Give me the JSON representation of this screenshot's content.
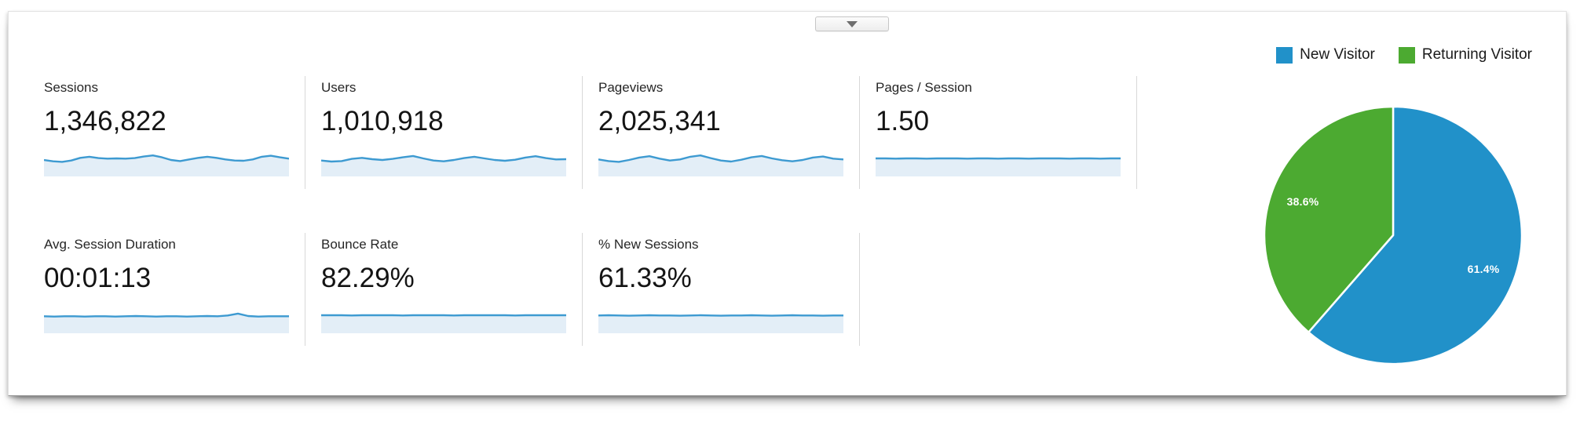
{
  "panel": {
    "collapse_button": {
      "icon": "chevron-down"
    }
  },
  "legend": {
    "items": [
      {
        "label": "New Visitor",
        "color": "#2191C9"
      },
      {
        "label": "Returning Visitor",
        "color": "#4CAA31"
      }
    ]
  },
  "metrics": {
    "row1": [
      {
        "label": "Sessions",
        "value": "1,346,822"
      },
      {
        "label": "Users",
        "value": "1,010,918"
      },
      {
        "label": "Pageviews",
        "value": "2,025,341"
      },
      {
        "label": "Pages / Session",
        "value": "1.50"
      }
    ],
    "row2": [
      {
        "label": "Avg. Session Duration",
        "value": "00:01:13"
      },
      {
        "label": "Bounce Rate",
        "value": "82.29%"
      },
      {
        "label": "% New Sessions",
        "value": "61.33%"
      }
    ]
  },
  "sparkline_style": {
    "line_color": "#3D9AD1",
    "fill_color": "#E3EEF7"
  },
  "chart_data": [
    {
      "type": "pie",
      "title": "",
      "labels": [
        "New Visitor",
        "Returning Visitor"
      ],
      "values": [
        61.4,
        38.6
      ],
      "unit": "percent",
      "colors": [
        "#2191C9",
        "#4CAA31"
      ],
      "data_labels": [
        "61.4%",
        "38.6%"
      ],
      "legend_position": "top-right",
      "start_angle_deg": 0,
      "direction": "clockwise"
    },
    {
      "type": "area",
      "name": "sessions-sparkline",
      "values": [
        0.5,
        0.45,
        0.43,
        0.48,
        0.58,
        0.62,
        0.57,
        0.55,
        0.56,
        0.55,
        0.57,
        0.63,
        0.67,
        0.6,
        0.5,
        0.46,
        0.52,
        0.58,
        0.62,
        0.58,
        0.52,
        0.48,
        0.47,
        0.52,
        0.62,
        0.66,
        0.6,
        0.55
      ]
    },
    {
      "type": "area",
      "name": "users-sparkline",
      "values": [
        0.48,
        0.44,
        0.46,
        0.54,
        0.58,
        0.53,
        0.5,
        0.54,
        0.6,
        0.65,
        0.56,
        0.48,
        0.45,
        0.5,
        0.57,
        0.62,
        0.56,
        0.5,
        0.47,
        0.51,
        0.59,
        0.64,
        0.57,
        0.52,
        0.53
      ]
    },
    {
      "type": "area",
      "name": "pageviews-sparkline",
      "values": [
        0.52,
        0.46,
        0.43,
        0.5,
        0.59,
        0.64,
        0.55,
        0.48,
        0.52,
        0.62,
        0.67,
        0.57,
        0.48,
        0.44,
        0.51,
        0.6,
        0.65,
        0.56,
        0.49,
        0.45,
        0.5,
        0.59,
        0.63,
        0.55,
        0.52
      ]
    },
    {
      "type": "area",
      "name": "pages-per-session-sparkline",
      "values": [
        0.56,
        0.56,
        0.55,
        0.56,
        0.56,
        0.55,
        0.56,
        0.56,
        0.56,
        0.55,
        0.56,
        0.56,
        0.55,
        0.56,
        0.56,
        0.55,
        0.56,
        0.56,
        0.56,
        0.55,
        0.56,
        0.56,
        0.55,
        0.56,
        0.56
      ]
    },
    {
      "type": "area",
      "name": "avg-session-duration-sparkline",
      "values": [
        0.52,
        0.51,
        0.52,
        0.52,
        0.51,
        0.52,
        0.52,
        0.51,
        0.52,
        0.53,
        0.52,
        0.51,
        0.52,
        0.52,
        0.51,
        0.52,
        0.53,
        0.52,
        0.55,
        0.62,
        0.53,
        0.51,
        0.52,
        0.52,
        0.52
      ]
    },
    {
      "type": "area",
      "name": "bounce-rate-sparkline",
      "values": [
        0.56,
        0.56,
        0.56,
        0.55,
        0.56,
        0.56,
        0.56,
        0.56,
        0.55,
        0.56,
        0.56,
        0.56,
        0.56,
        0.55,
        0.56,
        0.56,
        0.56,
        0.56,
        0.56,
        0.55,
        0.56,
        0.56,
        0.56,
        0.56,
        0.56
      ]
    },
    {
      "type": "area",
      "name": "percent-new-sessions-sparkline",
      "values": [
        0.55,
        0.56,
        0.55,
        0.54,
        0.55,
        0.56,
        0.55,
        0.55,
        0.54,
        0.55,
        0.56,
        0.55,
        0.54,
        0.55,
        0.55,
        0.56,
        0.55,
        0.54,
        0.55,
        0.56,
        0.55,
        0.55,
        0.54,
        0.55,
        0.55
      ]
    }
  ]
}
